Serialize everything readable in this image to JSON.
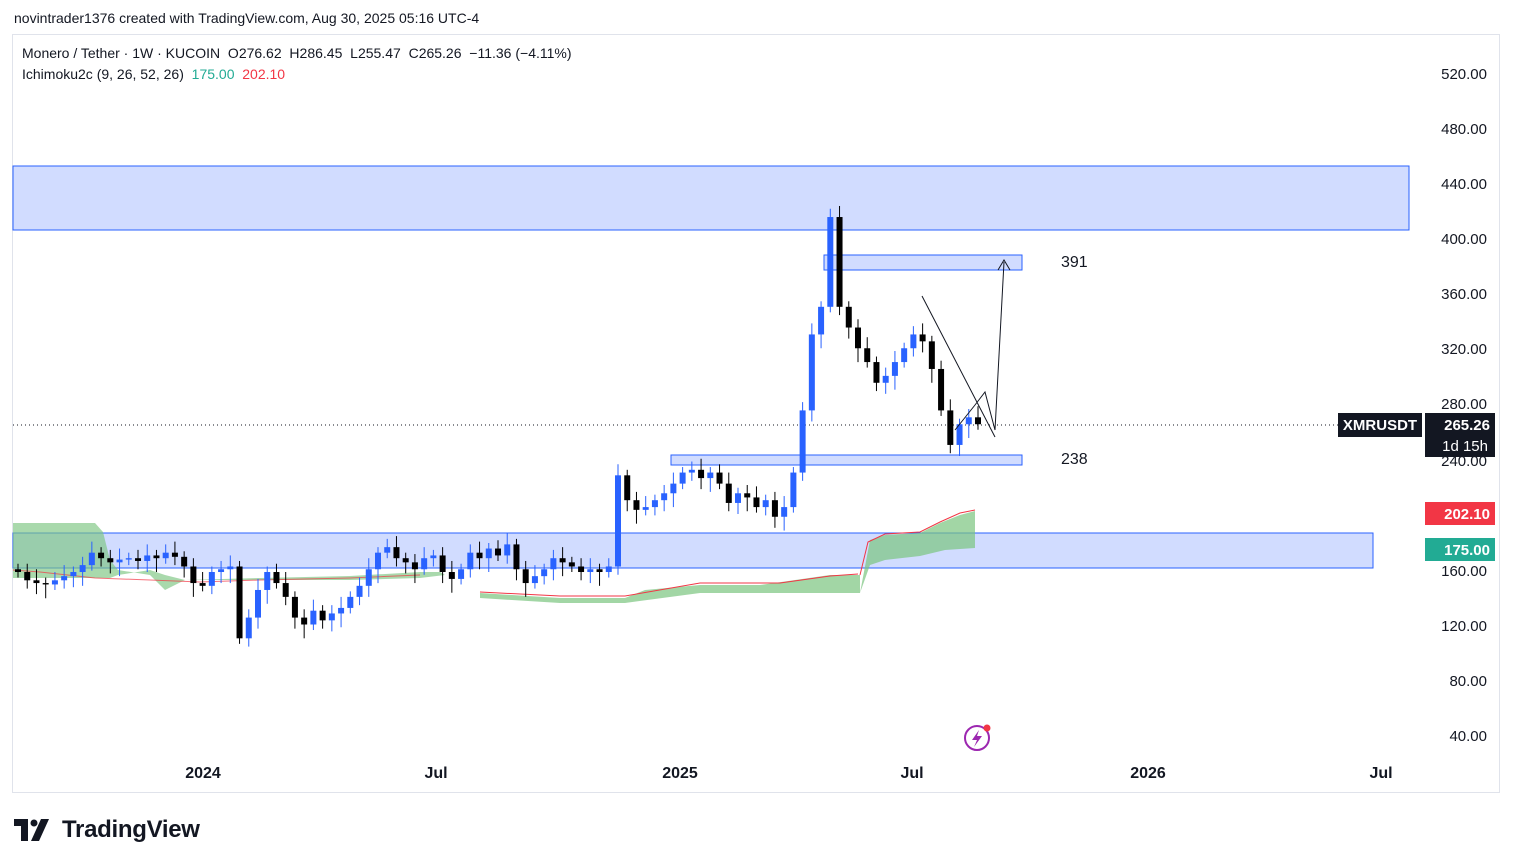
{
  "header": {
    "caption": "novintrader1376 created with TradingView.com, Aug 30, 2025 05:16 UTC-4"
  },
  "legend": {
    "symbol_line": "Monero / Tether · 1W · KUCOIN",
    "ohlc": {
      "open_label": "O",
      "open": "276.62",
      "high_label": "H",
      "high": "286.45",
      "low_label": "L",
      "low": "255.47",
      "close_label": "C",
      "close": "265.26",
      "change": "−11.36 (−4.11%)"
    },
    "indicator_name": "Ichimoku2c (9, 26, 52, 26)",
    "indicator_value_1": "175.00",
    "indicator_value_2": "202.10"
  },
  "price_scale": {
    "ticks": [
      "520.00",
      "480.00",
      "440.00",
      "400.00",
      "360.00",
      "320.00",
      "280.00",
      "240.00",
      "160.00",
      "120.00",
      "80.00",
      "40.00"
    ],
    "symbol_badge": "XMRUSDT",
    "last_price_badge": "265.26",
    "countdown_badge": "1d 15h",
    "cloud_top_badge": "202.10",
    "cloud_bottom_badge": "175.00"
  },
  "time_scale": {
    "ticks": [
      "2024",
      "Jul",
      "2025",
      "Jul",
      "2026",
      "Jul"
    ]
  },
  "annotations": {
    "upper_target": "391",
    "lower_level": "238"
  },
  "brand": {
    "name": "TradingView"
  },
  "colors": {
    "up": "#2962ff",
    "down": "#000000",
    "zone_fill": "#d1dcff",
    "zone_border": "#2962ff",
    "cloud_green": "#4caf50",
    "cloud_red": "#f23645"
  },
  "chart_data": {
    "type": "candlestick",
    "symbol": "XMRUSDT",
    "timeframe": "1W",
    "ylim": [
      20,
      550
    ],
    "y_ticks": [
      40,
      80,
      120,
      160,
      240,
      280,
      320,
      360,
      400,
      440,
      480,
      520
    ],
    "last_close": 265.26,
    "zones": [
      {
        "from": 407,
        "to": 453
      },
      {
        "from": 378,
        "to": 389
      },
      {
        "from": 233,
        "to": 240
      },
      {
        "from": 161,
        "to": 187
      }
    ],
    "levels": [
      391,
      238
    ],
    "cloud_values": [
      175.0,
      202.1
    ]
  }
}
